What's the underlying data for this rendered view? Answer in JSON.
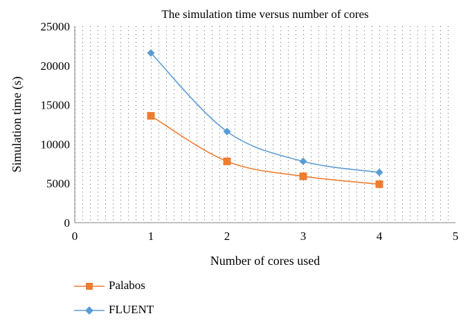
{
  "chart_data": {
    "type": "line",
    "title": "The simulation time versus number of cores",
    "xlabel": "Number of cores used",
    "ylabel": "Simulation time (s)",
    "xlim": [
      0,
      5
    ],
    "ylim": [
      0,
      25000
    ],
    "xticks": [
      "0",
      "1",
      "2",
      "3",
      "4",
      "5"
    ],
    "yticks": [
      "0",
      "5000",
      "10000",
      "15000",
      "20000",
      "25000"
    ],
    "grid": "dotted",
    "legend_position": "bottom-left",
    "smooth": true,
    "series": [
      {
        "name": "Palabos",
        "color": "#ED7D31",
        "marker": "square",
        "x": [
          1,
          2,
          3,
          4
        ],
        "y": [
          13600,
          7800,
          5900,
          4900
        ]
      },
      {
        "name": "FLUENT",
        "color": "#5B9BD5",
        "marker": "diamond",
        "x": [
          1,
          2,
          3,
          4
        ],
        "y": [
          21600,
          11600,
          7800,
          6400
        ]
      }
    ]
  }
}
